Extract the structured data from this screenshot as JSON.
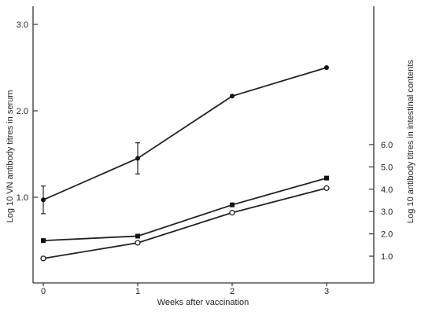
{
  "chart_data": {
    "type": "line",
    "xlabel": "Weeks after vaccination",
    "ylabel": "Log 10 VN antibody titres in serum",
    "ylabel_right": "Log 10 antibody titres in intestinal contents",
    "x_ticks": [
      "0",
      "1",
      "2",
      "3"
    ],
    "left_ticks": [
      "1.0",
      "2.0",
      "3.0"
    ],
    "right_ticks": [
      "1.0",
      "2.0",
      "3.0",
      "4.0",
      "5.0",
      "6.0"
    ],
    "xlim": [
      0,
      3.4
    ],
    "ylim_left": [
      0,
      3.0
    ],
    "ylim_right": [
      0,
      6.0
    ],
    "series": [
      {
        "axis": "left",
        "marker": "filled-circle",
        "x": [
          0,
          1,
          2,
          3
        ],
        "y": [
          0.97,
          1.45,
          2.17,
          2.5
        ],
        "error": [
          0.16,
          0.18,
          null,
          null
        ]
      },
      {
        "axis": "right",
        "marker": "filled-square",
        "x": [
          0,
          1,
          2,
          3
        ],
        "y": [
          1.7,
          1.9,
          3.3,
          4.5
        ]
      },
      {
        "axis": "right",
        "marker": "open-circle",
        "x": [
          0,
          1,
          2,
          3
        ],
        "y": [
          0.9,
          1.6,
          2.95,
          4.05
        ]
      }
    ]
  }
}
